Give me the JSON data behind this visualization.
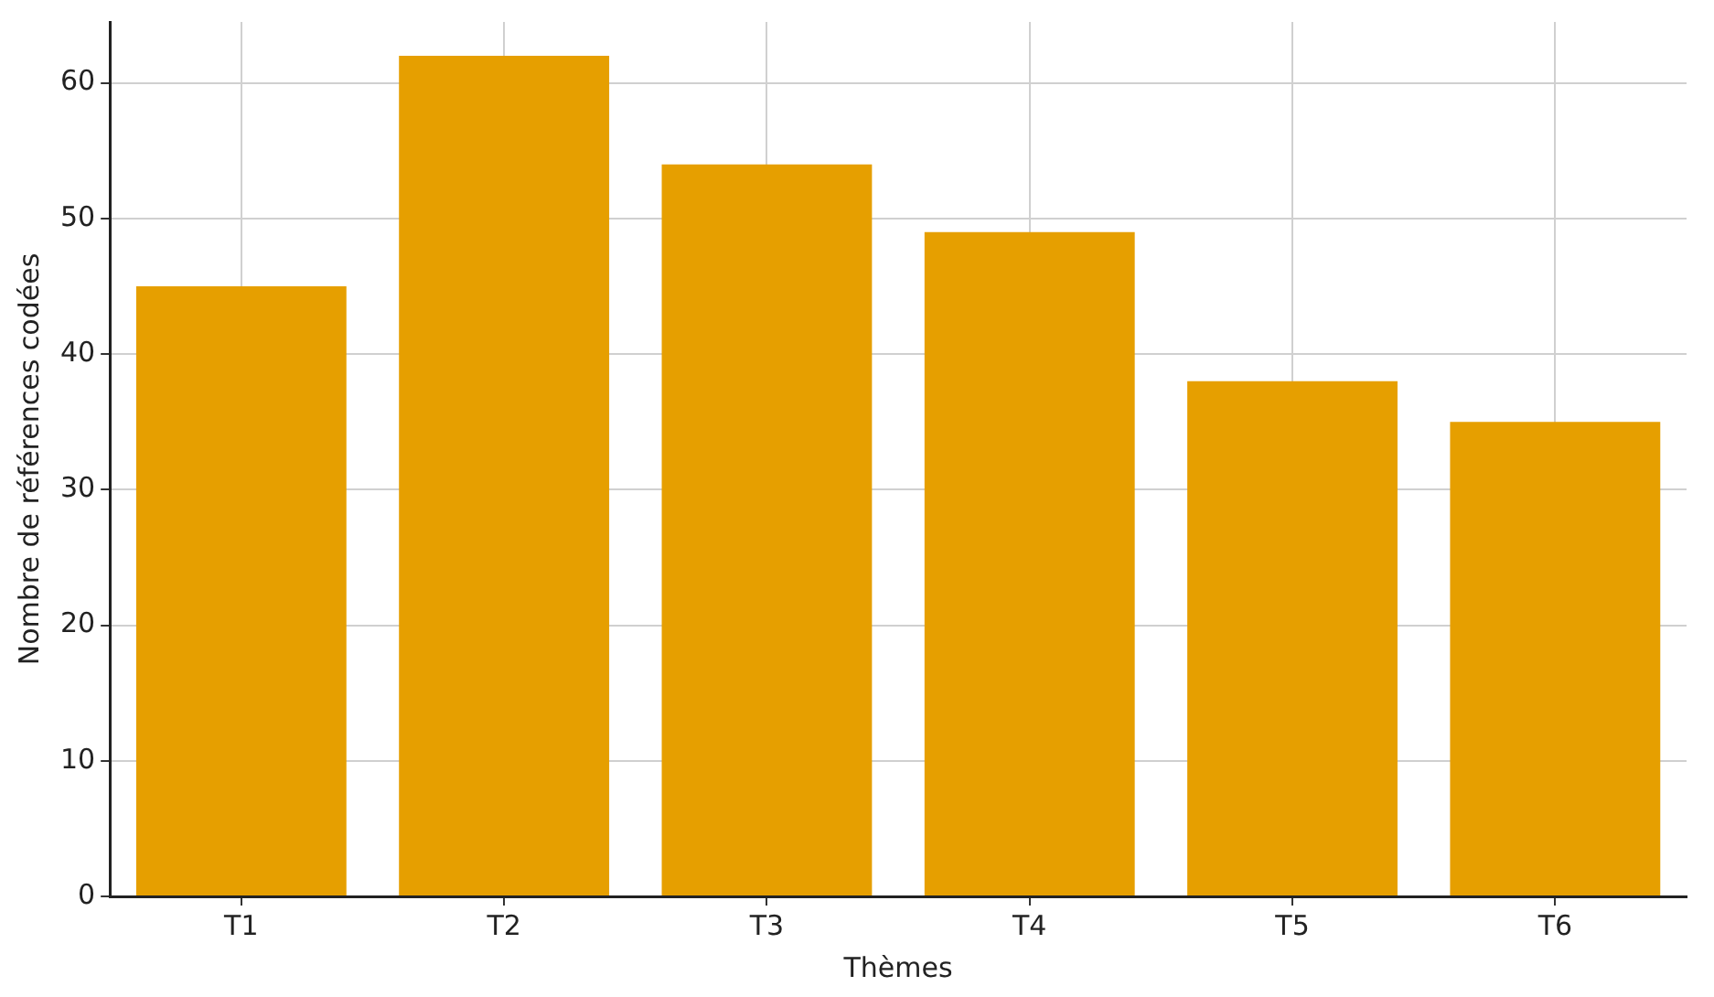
{
  "chart_data": {
    "type": "bar",
    "xlabel": "Thèmes",
    "ylabel": "Nombre de références codées",
    "categories": [
      "T1",
      "T2",
      "T3",
      "T4",
      "T5",
      "T6"
    ],
    "values": [
      45,
      62,
      54,
      49,
      38,
      35
    ],
    "color": "#e69f00",
    "ylim": [
      0,
      64.5
    ],
    "yticks": [
      0,
      10,
      20,
      30,
      40,
      50,
      60
    ],
    "grid": true
  }
}
